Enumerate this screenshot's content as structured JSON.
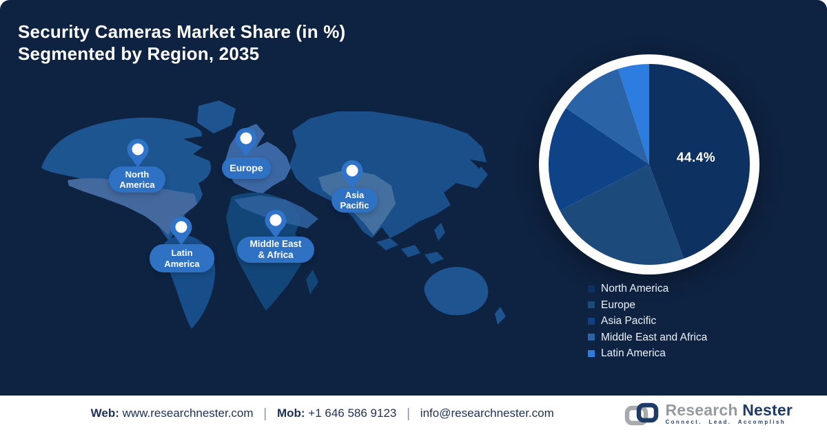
{
  "title": {
    "line1": "Security Cameras Market Share (in %)",
    "line2": "Segmented by Region, 2035"
  },
  "map": {
    "regions": [
      {
        "name": "North America",
        "label_line1": "North",
        "label_line2": "America"
      },
      {
        "name": "Europe",
        "label_line1": "Europe"
      },
      {
        "name": "Asia Pacific",
        "label_line1": "Asia",
        "label_line2": "Pacific"
      },
      {
        "name": "Middle East & Africa",
        "label_line1": "Middle East",
        "label_line2": "& Africa"
      },
      {
        "name": "Latin America",
        "label_line1": "Latin",
        "label_line2": "America"
      }
    ]
  },
  "chart_data": {
    "type": "pie",
    "title": "Security Cameras Market Share (in %) Segmented by Region, 2035",
    "categories": [
      "North America",
      "Europe",
      "Asia Pacific",
      "Middle East and Africa",
      "Latin America"
    ],
    "values": [
      44.4,
      23.0,
      17.1,
      10.5,
      5.0
    ],
    "colors": [
      "#0d3161",
      "#1c4a7b",
      "#0e4487",
      "#2a64a6",
      "#2d7ce0"
    ],
    "start_angle_deg": 0,
    "direction": "clockwise",
    "shown_label": {
      "index": 0,
      "text": "44.4%"
    },
    "legend_position": "bottom-right",
    "ring_color": "#ffffff"
  },
  "footer": {
    "web_label": "Web:",
    "web_value": "www.researchnester.com",
    "mob_label": "Mob:",
    "mob_value": "+1 646 586 9123",
    "email": "info@researchnester.com",
    "separator": "|"
  },
  "brand": {
    "name_primary": "Research",
    "name_secondary": "Nester",
    "tagline": "Connect. Lead. Accomplish"
  },
  "colors": {
    "background": "#0e2342",
    "map_base": "#17497f",
    "map_highlight": "#44699e",
    "pin": "#2f74c9",
    "pill": "#2f71c3",
    "footer_text": "#1d3055"
  }
}
